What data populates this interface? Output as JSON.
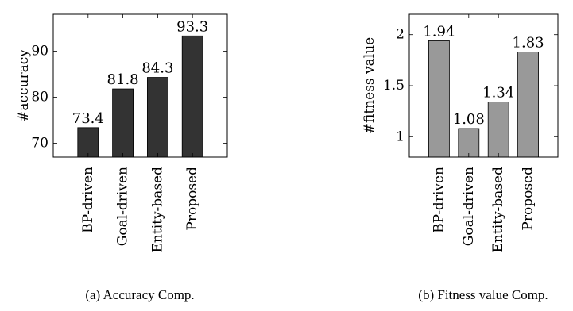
{
  "chart_data": [
    {
      "type": "bar",
      "caption": "(a) Accuracy Comp.",
      "ylabel": "#accuracy",
      "categories": [
        "BP-driven",
        "Goal-driven",
        "Entity-based",
        "Proposed"
      ],
      "values": [
        73.4,
        81.8,
        84.3,
        93.3
      ],
      "value_labels": [
        "73.4",
        "81.8",
        "84.3",
        "93.3"
      ],
      "yticks": [
        70,
        80,
        90
      ],
      "ylim": [
        67,
        98
      ],
      "bar_color": "#333333",
      "grid": false
    },
    {
      "type": "bar",
      "caption": "(b) Fitness value Comp.",
      "ylabel": "#fitness value",
      "categories": [
        "BP-driven",
        "Goal-driven",
        "Entity-based",
        "Proposed"
      ],
      "values": [
        1.94,
        1.08,
        1.34,
        1.83
      ],
      "value_labels": [
        "1.94",
        "1.08",
        "1.34",
        "1.83"
      ],
      "yticks": [
        1,
        1.5,
        2
      ],
      "ylim": [
        0.8,
        2.2
      ],
      "bar_color": "#999999",
      "grid": false
    }
  ]
}
